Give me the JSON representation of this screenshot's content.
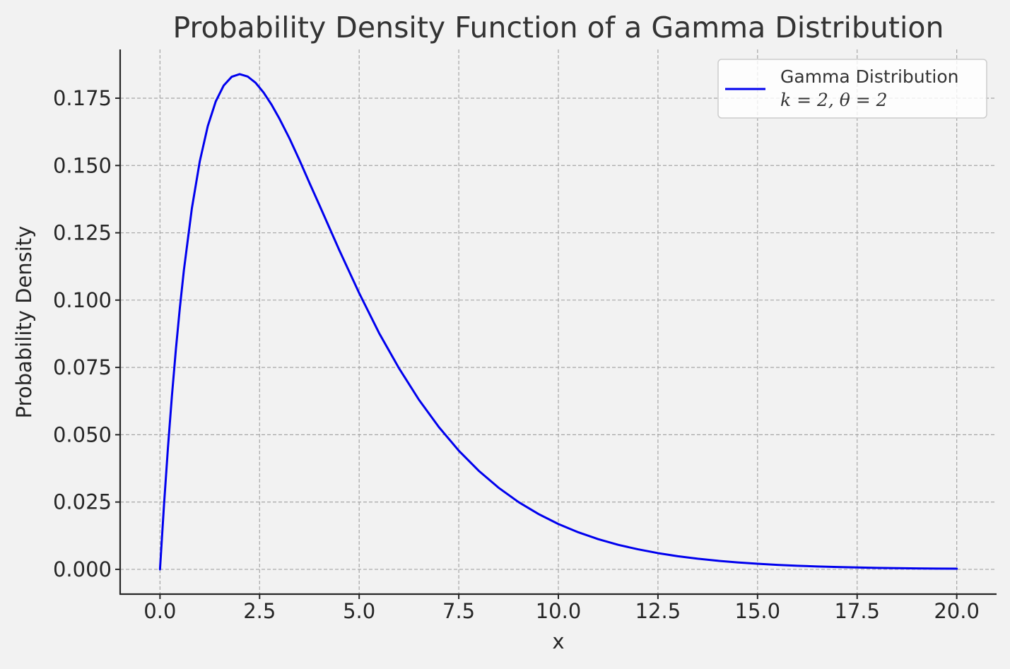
{
  "chart_data": {
    "type": "line",
    "title": "Probability Density Function of a Gamma Distribution",
    "xlabel": "x",
    "ylabel": "Probability Density",
    "xlim": [
      -1.0,
      21.0
    ],
    "ylim": [
      -0.0092,
      0.1931
    ],
    "xticks": [
      0.0,
      2.5,
      5.0,
      7.5,
      10.0,
      12.5,
      15.0,
      17.5,
      20.0
    ],
    "xtick_labels": [
      "0.0",
      "2.5",
      "5.0",
      "7.5",
      "10.0",
      "12.5",
      "15.0",
      "17.5",
      "20.0"
    ],
    "yticks": [
      0.0,
      0.025,
      0.05,
      0.075,
      0.1,
      0.125,
      0.15,
      0.175
    ],
    "ytick_labels": [
      "0.000",
      "0.025",
      "0.050",
      "0.075",
      "0.100",
      "0.125",
      "0.150",
      "0.175"
    ],
    "grid": true,
    "legend_position": "top-right",
    "series": [
      {
        "name": "Gamma Distribution",
        "name_line2": "k = 2, θ = 2",
        "color": "#0000ee",
        "x": [
          0,
          0.1,
          0.2,
          0.3,
          0.4,
          0.5,
          0.6,
          0.8,
          1.0,
          1.2,
          1.4,
          1.6,
          1.8,
          2.0,
          2.2,
          2.4,
          2.6,
          2.8,
          3.0,
          3.25,
          3.5,
          3.75,
          4.0,
          4.5,
          5.0,
          5.5,
          6.0,
          6.5,
          7.0,
          7.5,
          8.0,
          8.5,
          9.0,
          9.5,
          10.0,
          10.5,
          11.0,
          11.5,
          12.0,
          12.5,
          13.0,
          13.5,
          14.0,
          14.5,
          15.0,
          15.5,
          16.0,
          16.5,
          17.0,
          17.5,
          18.0,
          18.5,
          19.0,
          19.5,
          20.0
        ],
        "y": [
          0,
          0.02378,
          0.04524,
          0.06455,
          0.08187,
          0.09735,
          0.11112,
          0.13406,
          0.15163,
          0.16464,
          0.17381,
          0.17973,
          0.18295,
          0.18394,
          0.18306,
          0.18072,
          0.17711,
          0.1726,
          0.16735,
          0.16007,
          0.15204,
          0.14361,
          0.13534,
          0.11858,
          0.1026,
          0.08776,
          0.07468,
          0.06299,
          0.05285,
          0.04409,
          0.03663,
          0.03031,
          0.025,
          0.02056,
          0.01684,
          0.01377,
          0.01122,
          0.00911,
          0.00744,
          0.00603,
          0.00488,
          0.00394,
          0.00319,
          0.00257,
          0.00207,
          0.00166,
          0.00134,
          0.00107,
          0.00086,
          0.00069,
          0.00055,
          0.00044,
          0.00036,
          0.00028,
          0.00023
        ]
      }
    ]
  }
}
